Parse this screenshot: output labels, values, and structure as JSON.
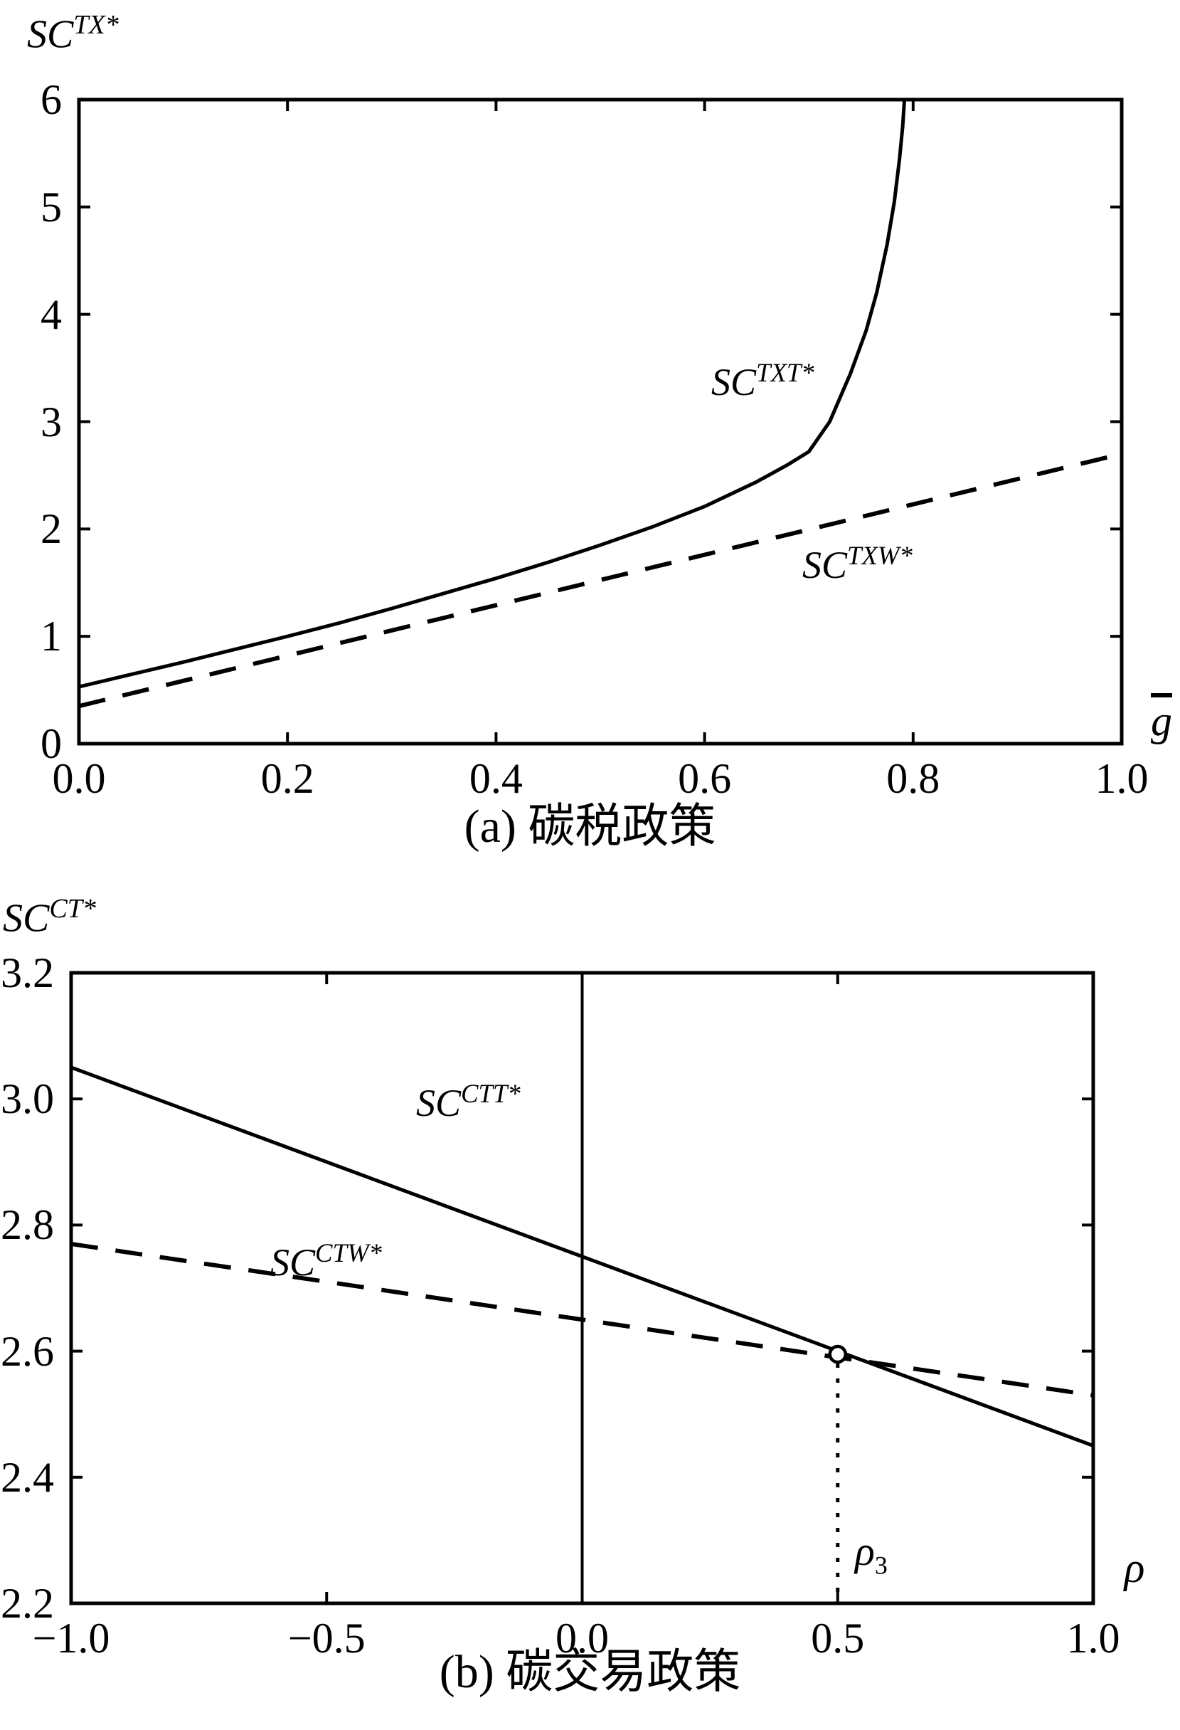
{
  "figure": {
    "background": "#ffffff",
    "ink": "#000000"
  },
  "chart_data": [
    {
      "id": "panel_a",
      "type": "line",
      "title": "(a) 碳税政策",
      "x_axis_label": {
        "base": "g",
        "overline": true
      },
      "y_axis_label": {
        "base": "SC",
        "sup": "TX*"
      },
      "xlim": [
        0,
        1
      ],
      "ylim": [
        0,
        6
      ],
      "grid": false,
      "legend_position": "inline-annotations",
      "x_ticks": [
        {
          "v": 0.0,
          "label": "0.0"
        },
        {
          "v": 0.2,
          "label": "0.2"
        },
        {
          "v": 0.4,
          "label": "0.4"
        },
        {
          "v": 0.6,
          "label": "0.6"
        },
        {
          "v": 0.8,
          "label": "0.8"
        },
        {
          "v": 1.0,
          "label": "1.0"
        }
      ],
      "y_ticks": [
        {
          "v": 0,
          "label": "0"
        },
        {
          "v": 1,
          "label": "1"
        },
        {
          "v": 2,
          "label": "2"
        },
        {
          "v": 3,
          "label": "3"
        },
        {
          "v": 4,
          "label": "4"
        },
        {
          "v": 5,
          "label": "5"
        },
        {
          "v": 6,
          "label": "6"
        }
      ],
      "series": [
        {
          "name": {
            "base": "SC",
            "sup": "TXT*"
          },
          "style": "solid",
          "points": [
            [
              0.0,
              0.53
            ],
            [
              0.05,
              0.645
            ],
            [
              0.1,
              0.76
            ],
            [
              0.15,
              0.88
            ],
            [
              0.2,
              1.0
            ],
            [
              0.25,
              1.125
            ],
            [
              0.3,
              1.26
            ],
            [
              0.35,
              1.4
            ],
            [
              0.4,
              1.54
            ],
            [
              0.45,
              1.69
            ],
            [
              0.5,
              1.85
            ],
            [
              0.55,
              2.02
            ],
            [
              0.6,
              2.21
            ],
            [
              0.65,
              2.44
            ],
            [
              0.68,
              2.6
            ],
            [
              0.7,
              2.72
            ],
            [
              0.72,
              3.0
            ],
            [
              0.74,
              3.45
            ],
            [
              0.755,
              3.85
            ],
            [
              0.765,
              4.2
            ],
            [
              0.775,
              4.65
            ],
            [
              0.782,
              5.05
            ],
            [
              0.787,
              5.45
            ],
            [
              0.79,
              5.75
            ],
            [
              0.792,
              6.05
            ]
          ]
        },
        {
          "name": {
            "base": "SC",
            "sup": "TXW*"
          },
          "style": "dashed",
          "points": [
            [
              0.0,
              0.35
            ],
            [
              1.0,
              2.7
            ]
          ]
        }
      ]
    },
    {
      "id": "panel_b",
      "type": "line",
      "title": "(b) 碳交易政策",
      "x_axis_label": {
        "base": "ρ"
      },
      "y_axis_label": {
        "base": "SC",
        "sup": "CT*"
      },
      "xlim": [
        -1,
        1
      ],
      "ylim": [
        2.2,
        3.2
      ],
      "grid": false,
      "legend_position": "inline-annotations",
      "x_ticks": [
        {
          "v": -1.0,
          "label": "−1.0"
        },
        {
          "v": -0.5,
          "label": "−0.5"
        },
        {
          "v": 0.0,
          "label": "0.0"
        },
        {
          "v": 0.5,
          "label": "0.5"
        },
        {
          "v": 1.0,
          "label": "1.0"
        }
      ],
      "y_ticks": [
        {
          "v": 2.2,
          "label": "2.2"
        },
        {
          "v": 2.4,
          "label": "2.4"
        },
        {
          "v": 2.6,
          "label": "2.6"
        },
        {
          "v": 2.8,
          "label": "2.8"
        },
        {
          "v": 3.0,
          "label": "3.0"
        },
        {
          "v": 3.2,
          "label": "3.2"
        }
      ],
      "reference_vline_x": 0,
      "series": [
        {
          "name": {
            "base": "SC",
            "sup": "CTT*"
          },
          "style": "solid",
          "points": [
            [
              -1.0,
              3.05
            ],
            [
              1.0,
              2.45
            ]
          ]
        },
        {
          "name": {
            "base": "SC",
            "sup": "CTW*"
          },
          "style": "dashed",
          "points": [
            [
              -1.0,
              2.77
            ],
            [
              1.0,
              2.53
            ]
          ]
        }
      ],
      "intersection_marker": {
        "x": 0.5,
        "y": 2.595,
        "shape": "open-circle",
        "drop_line": "dotted",
        "label": {
          "base": "ρ",
          "sub": "3"
        }
      }
    }
  ]
}
